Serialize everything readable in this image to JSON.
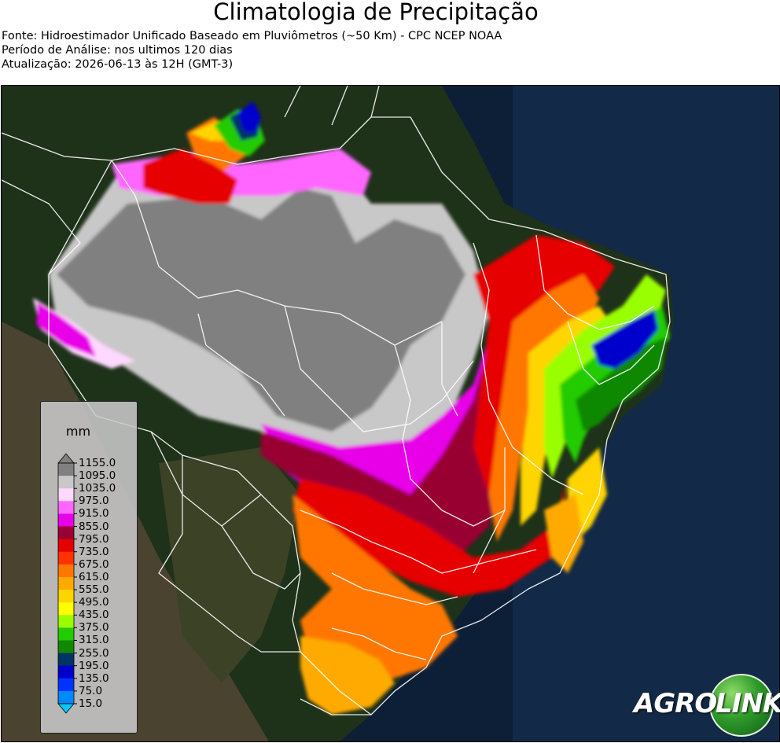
{
  "header": {
    "title": "Climatologia de Precipitação",
    "source": "Fonte: Hidroestimador Unificado Baseado em Pluviômetros (~50 Km) - CPC NCEP NOAA",
    "period": "Período de Análise: nos ultimos 120 dias",
    "updated": "Atualização: 2026-06-13 às 12H (GMT-3)"
  },
  "legend": {
    "unit": "mm",
    "ticks": [
      "1155.0",
      "1095.0",
      "1035.0",
      "975.0",
      "915.0",
      "855.0",
      "795.0",
      "735.0",
      "675.0",
      "615.0",
      "555.0",
      "495.0",
      "435.0",
      "375.0",
      "315.0",
      "255.0",
      "195.0",
      "135.0",
      "75.0",
      "15.0"
    ],
    "colors": [
      "#808080",
      "#c8c8c8",
      "#ffd8ff",
      "#ff66ff",
      "#e800e8",
      "#990033",
      "#e60000",
      "#ff3300",
      "#ff7700",
      "#ffaa00",
      "#ffd500",
      "#ffff00",
      "#99ff00",
      "#22cc00",
      "#118800",
      "#003366",
      "#0000cc",
      "#0033ff",
      "#0088ff",
      "#00c8ff"
    ]
  },
  "logo": {
    "text_left": "AGRO",
    "text_right": "LINK"
  }
}
